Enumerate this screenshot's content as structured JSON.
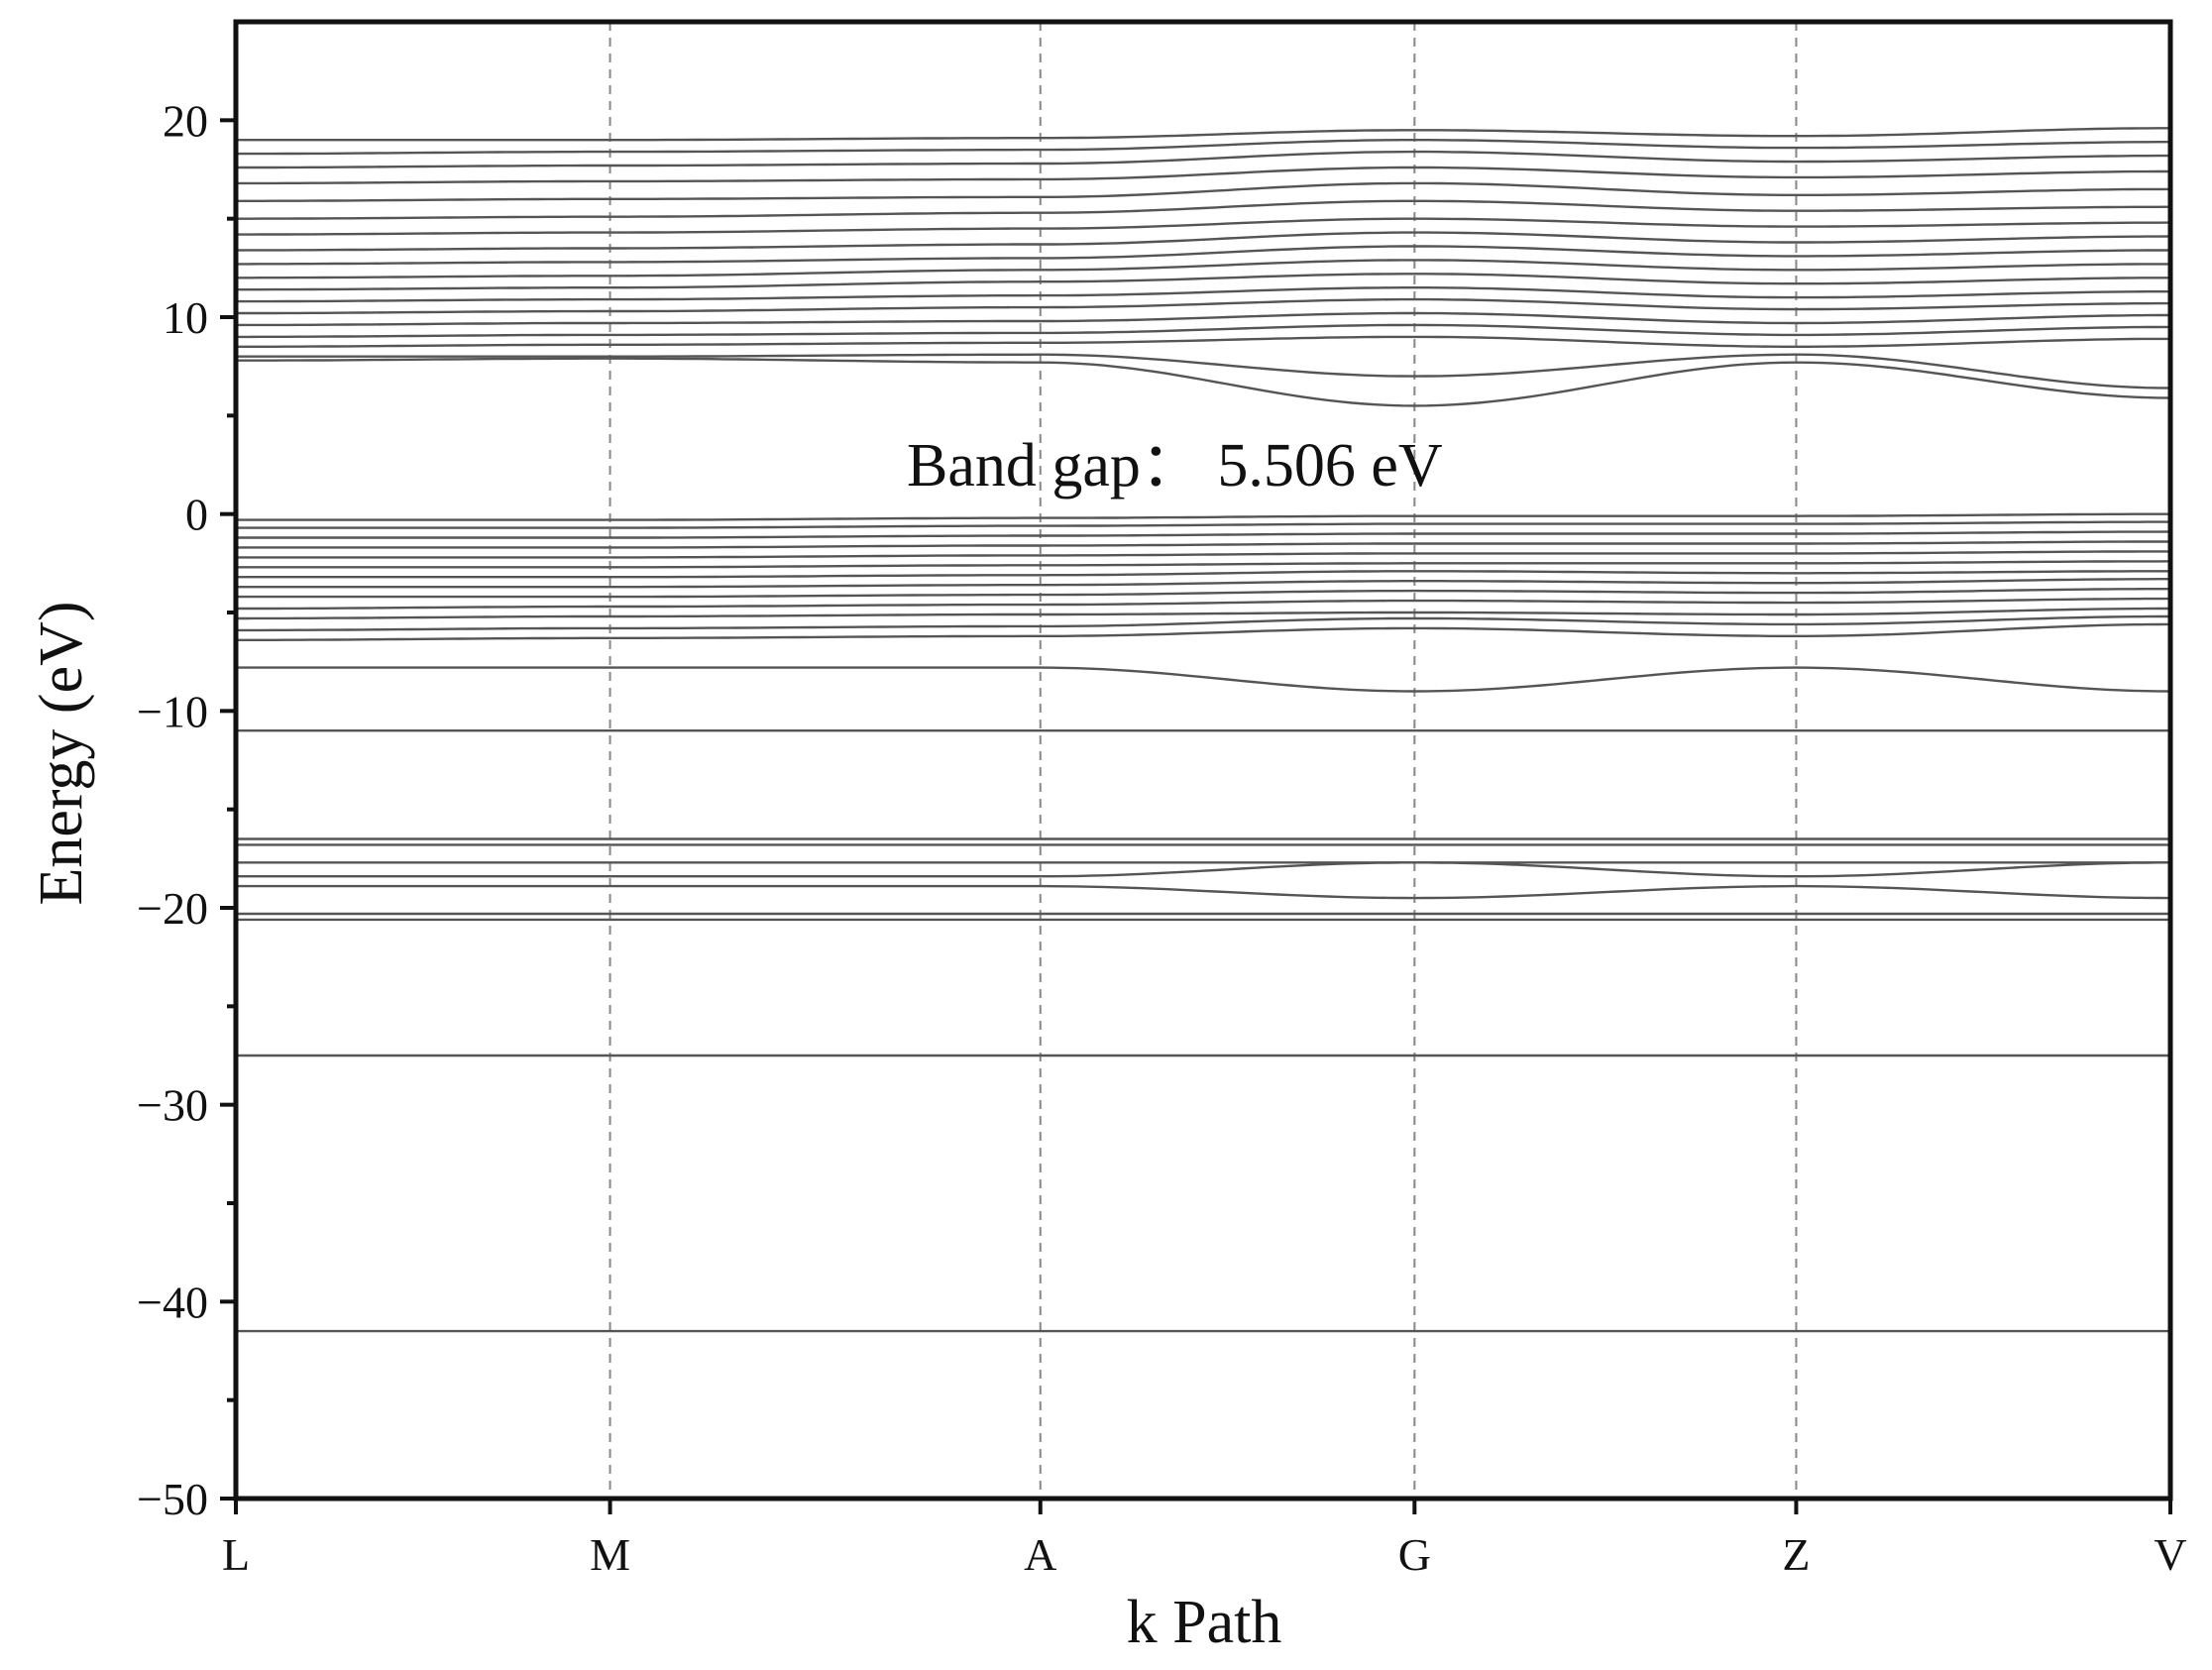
{
  "chart_data": {
    "type": "line",
    "title": "",
    "xlabel": "k Path",
    "ylabel": "Energy (eV)",
    "ylim": [
      -50,
      25
    ],
    "yticks": [
      20,
      10,
      0,
      -10,
      -20,
      -30,
      -40,
      -50
    ],
    "ytick_labels": [
      "20",
      "10",
      "0",
      "−10",
      "−20",
      "−30",
      "−40",
      "−50"
    ],
    "kpoints": [
      "L",
      "M",
      "A",
      "G",
      "Z",
      "V"
    ],
    "kpoint_positions": [
      0,
      1,
      2.15,
      3.15,
      4.17,
      5.17
    ],
    "grid": "dashed vertical lines at high-symmetry k-points",
    "legend": "none",
    "annotation": "Band gap： 5.506 eV",
    "band_gap_eV": 5.506,
    "line_color": "#555555",
    "series": [
      {
        "values": [
          -41.5,
          -41.5,
          -41.5,
          -41.5,
          -41.5,
          -41.5
        ]
      },
      {
        "values": [
          -27.5,
          -27.5,
          -27.5,
          -27.5,
          -27.5,
          -27.5
        ]
      },
      {
        "values": [
          -20.6,
          -20.6,
          -20.6,
          -20.6,
          -20.6,
          -20.6
        ]
      },
      {
        "values": [
          -20.3,
          -20.3,
          -20.3,
          -20.3,
          -20.3,
          -20.3
        ]
      },
      {
        "values": [
          -18.9,
          -18.9,
          -18.9,
          -19.5,
          -18.9,
          -19.5
        ]
      },
      {
        "values": [
          -18.4,
          -18.4,
          -18.4,
          -17.7,
          -18.4,
          -17.7
        ]
      },
      {
        "values": [
          -17.7,
          -17.7,
          -17.7,
          -17.7,
          -17.7,
          -17.7
        ]
      },
      {
        "values": [
          -16.8,
          -16.8,
          -16.8,
          -16.8,
          -16.8,
          -16.8
        ]
      },
      {
        "values": [
          -16.5,
          -16.5,
          -16.5,
          -16.5,
          -16.5,
          -16.5
        ]
      },
      {
        "values": [
          -11.0,
          -11.0,
          -11.0,
          -11.0,
          -11.0,
          -11.0
        ]
      },
      {
        "values": [
          -7.8,
          -7.8,
          -7.8,
          -9.0,
          -7.8,
          -9.0
        ]
      },
      {
        "values": [
          -6.4,
          -6.3,
          -6.2,
          -5.8,
          -6.2,
          -5.6
        ]
      },
      {
        "values": [
          -5.9,
          -5.8,
          -5.7,
          -5.3,
          -5.6,
          -5.2
        ]
      },
      {
        "values": [
          -5.3,
          -5.2,
          -5.1,
          -5.0,
          -5.1,
          -4.8
        ]
      },
      {
        "values": [
          -4.8,
          -4.7,
          -4.6,
          -4.4,
          -4.5,
          -4.3
        ]
      },
      {
        "values": [
          -4.2,
          -4.2,
          -4.1,
          -3.9,
          -4.0,
          -3.8
        ]
      },
      {
        "values": [
          -3.7,
          -3.7,
          -3.6,
          -3.4,
          -3.5,
          -3.3
        ]
      },
      {
        "values": [
          -3.2,
          -3.2,
          -3.1,
          -2.9,
          -3.0,
          -2.9
        ]
      },
      {
        "values": [
          -2.7,
          -2.7,
          -2.6,
          -2.5,
          -2.5,
          -2.4
        ]
      },
      {
        "values": [
          -2.2,
          -2.2,
          -2.1,
          -2.0,
          -2.0,
          -1.9
        ]
      },
      {
        "values": [
          -1.7,
          -1.7,
          -1.6,
          -1.5,
          -1.5,
          -1.4
        ]
      },
      {
        "values": [
          -1.2,
          -1.2,
          -1.1,
          -1.0,
          -1.0,
          -0.9
        ]
      },
      {
        "values": [
          -0.7,
          -0.7,
          -0.6,
          -0.5,
          -0.5,
          -0.4
        ]
      },
      {
        "values": [
          -0.3,
          -0.3,
          -0.2,
          -0.1,
          -0.1,
          0.0
        ]
      },
      {
        "values": [
          7.8,
          7.9,
          7.7,
          5.5,
          7.7,
          5.9
        ]
      },
      {
        "values": [
          8.0,
          8.0,
          8.1,
          7.0,
          8.1,
          6.4
        ]
      },
      {
        "values": [
          8.5,
          8.6,
          8.7,
          9.0,
          8.5,
          8.9
        ]
      },
      {
        "values": [
          9.0,
          9.1,
          9.2,
          9.6,
          9.1,
          9.5
        ]
      },
      {
        "values": [
          9.6,
          9.7,
          9.8,
          10.2,
          9.7,
          10.1
        ]
      },
      {
        "values": [
          10.2,
          10.3,
          10.5,
          10.9,
          10.4,
          10.7
        ]
      },
      {
        "values": [
          10.8,
          10.9,
          11.1,
          11.5,
          11.0,
          11.3
        ]
      },
      {
        "values": [
          11.4,
          11.5,
          11.8,
          12.2,
          11.7,
          12.0
        ]
      },
      {
        "values": [
          12.0,
          12.1,
          12.4,
          12.9,
          12.4,
          12.7
        ]
      },
      {
        "values": [
          12.7,
          12.8,
          13.0,
          13.6,
          13.1,
          13.4
        ]
      },
      {
        "values": [
          13.4,
          13.5,
          13.7,
          14.3,
          13.8,
          14.1
        ]
      },
      {
        "values": [
          14.2,
          14.3,
          14.5,
          15.0,
          14.6,
          14.8
        ]
      },
      {
        "values": [
          15.0,
          15.1,
          15.3,
          15.9,
          15.4,
          15.6
        ]
      },
      {
        "values": [
          15.9,
          16.0,
          16.1,
          16.8,
          16.2,
          16.5
        ]
      },
      {
        "values": [
          16.8,
          16.9,
          17.0,
          17.6,
          17.1,
          17.4
        ]
      },
      {
        "values": [
          17.6,
          17.7,
          17.8,
          18.4,
          17.9,
          18.2
        ]
      },
      {
        "values": [
          18.3,
          18.4,
          18.5,
          19.0,
          18.6,
          18.9
        ]
      },
      {
        "values": [
          19.0,
          19.0,
          19.1,
          19.5,
          19.2,
          19.6
        ]
      }
    ]
  }
}
